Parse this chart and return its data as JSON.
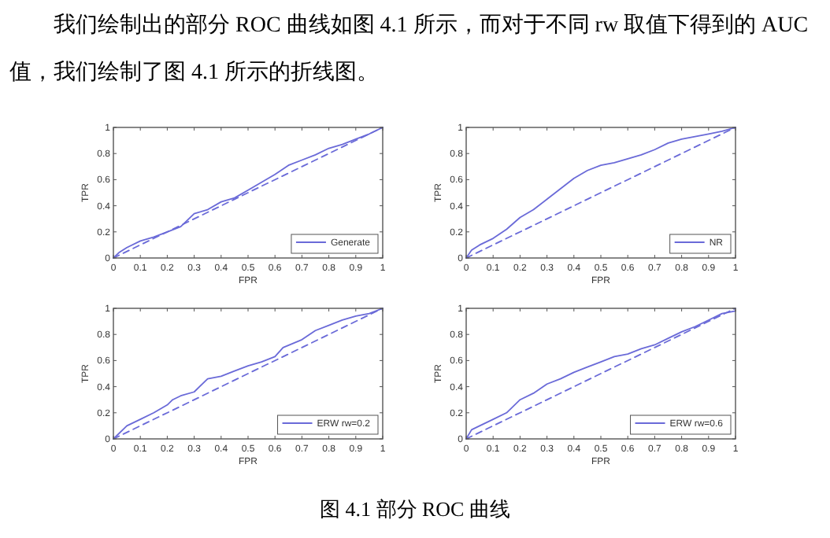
{
  "chart_data": [
    {
      "type": "line",
      "xlabel": "FPR",
      "ylabel": "TPR",
      "xlim": [
        0,
        1
      ],
      "ylim": [
        0,
        1
      ],
      "xticks": [
        0,
        0.1,
        0.2,
        0.3,
        0.4,
        0.5,
        0.6,
        0.7,
        0.8,
        0.9,
        1
      ],
      "yticks": [
        0,
        0.2,
        0.4,
        0.6,
        0.8,
        1
      ],
      "legend": "bottom right",
      "annotations": [
        "我们绘制出的部分 ROC 曲线如图 4.1 所示，而对于不同 rw 取值下得到的 AUC 值，我们绘制了图 4.1 所示的折线图。"
      ],
      "series": [
        {
          "name": "Generate",
          "color": "#6a6ad8",
          "x": [
            0,
            0.02,
            0.05,
            0.1,
            0.15,
            0.2,
            0.25,
            0.3,
            0.35,
            0.4,
            0.45,
            0.5,
            0.55,
            0.6,
            0.65,
            0.7,
            0.75,
            0.8,
            0.85,
            0.9,
            0.95,
            1
          ],
          "values": [
            0,
            0.04,
            0.08,
            0.13,
            0.16,
            0.2,
            0.24,
            0.34,
            0.37,
            0.43,
            0.46,
            0.52,
            0.58,
            0.64,
            0.71,
            0.75,
            0.79,
            0.84,
            0.87,
            0.91,
            0.95,
            1
          ]
        },
        {
          "color": "#6a6ad8",
          "line_style": "dashed",
          "x": [
            0,
            1
          ],
          "values": [
            0,
            1
          ]
        }
      ]
    },
    {
      "type": "line",
      "xlabel": "FPR",
      "ylabel": "TPR",
      "xlim": [
        0,
        1
      ],
      "ylim": [
        0,
        1
      ],
      "xticks": [
        0,
        0.1,
        0.2,
        0.3,
        0.4,
        0.5,
        0.6,
        0.7,
        0.8,
        0.9,
        1
      ],
      "yticks": [
        0,
        0.2,
        0.4,
        0.6,
        0.8,
        1
      ],
      "legend": "bottom right",
      "series": [
        {
          "name": "NR",
          "color": "#6a6ad8",
          "x": [
            0,
            0.02,
            0.05,
            0.1,
            0.15,
            0.2,
            0.25,
            0.3,
            0.35,
            0.4,
            0.45,
            0.5,
            0.55,
            0.6,
            0.65,
            0.7,
            0.75,
            0.8,
            0.85,
            0.9,
            0.95,
            1
          ],
          "values": [
            0,
            0.06,
            0.1,
            0.15,
            0.22,
            0.31,
            0.37,
            0.45,
            0.53,
            0.61,
            0.67,
            0.71,
            0.73,
            0.76,
            0.79,
            0.83,
            0.88,
            0.91,
            0.93,
            0.95,
            0.97,
            1
          ]
        },
        {
          "color": "#6a6ad8",
          "line_style": "dashed",
          "x": [
            0,
            1
          ],
          "values": [
            0,
            1
          ]
        }
      ]
    },
    {
      "type": "line",
      "xlabel": "FPR",
      "ylabel": "TPR",
      "xlim": [
        0,
        1
      ],
      "ylim": [
        0,
        1
      ],
      "xticks": [
        0,
        0.1,
        0.2,
        0.3,
        0.4,
        0.5,
        0.6,
        0.7,
        0.8,
        0.9,
        1
      ],
      "yticks": [
        0,
        0.2,
        0.4,
        0.6,
        0.8,
        1
      ],
      "legend": "bottom right",
      "series": [
        {
          "name": "ERW rw=0.2",
          "color": "#6a6ad8",
          "x": [
            0,
            0.05,
            0.1,
            0.15,
            0.2,
            0.22,
            0.25,
            0.3,
            0.35,
            0.4,
            0.45,
            0.5,
            0.55,
            0.6,
            0.63,
            0.7,
            0.75,
            0.8,
            0.85,
            0.9,
            0.95,
            1
          ],
          "values": [
            0,
            0.1,
            0.15,
            0.2,
            0.26,
            0.3,
            0.33,
            0.36,
            0.46,
            0.48,
            0.52,
            0.56,
            0.59,
            0.63,
            0.7,
            0.76,
            0.83,
            0.87,
            0.91,
            0.94,
            0.96,
            1
          ]
        },
        {
          "color": "#6a6ad8",
          "line_style": "dashed",
          "x": [
            0,
            1
          ],
          "values": [
            0,
            1
          ]
        }
      ]
    },
    {
      "type": "line",
      "xlabel": "FPR",
      "ylabel": "TPR",
      "xlim": [
        0,
        1
      ],
      "ylim": [
        0,
        1
      ],
      "xticks": [
        0,
        0.1,
        0.2,
        0.3,
        0.4,
        0.5,
        0.6,
        0.7,
        0.8,
        0.9,
        1
      ],
      "yticks": [
        0,
        0.2,
        0.4,
        0.6,
        0.8,
        1
      ],
      "legend": "bottom right",
      "annotations": [
        "图 4.1 部分 ROC 曲线"
      ],
      "series": [
        {
          "name": "ERW rw=0.6",
          "color": "#6a6ad8",
          "x": [
            0,
            0.02,
            0.05,
            0.1,
            0.15,
            0.2,
            0.25,
            0.3,
            0.35,
            0.4,
            0.45,
            0.5,
            0.55,
            0.6,
            0.65,
            0.7,
            0.75,
            0.8,
            0.85,
            0.9,
            0.95,
            1
          ],
          "values": [
            0,
            0.07,
            0.1,
            0.15,
            0.2,
            0.3,
            0.35,
            0.42,
            0.46,
            0.51,
            0.55,
            0.59,
            0.63,
            0.65,
            0.69,
            0.72,
            0.77,
            0.82,
            0.86,
            0.91,
            0.96,
            0.98
          ]
        },
        {
          "color": "#6a6ad8",
          "line_style": "dashed",
          "x": [
            0,
            1
          ],
          "values": [
            0,
            1
          ]
        }
      ]
    }
  ]
}
